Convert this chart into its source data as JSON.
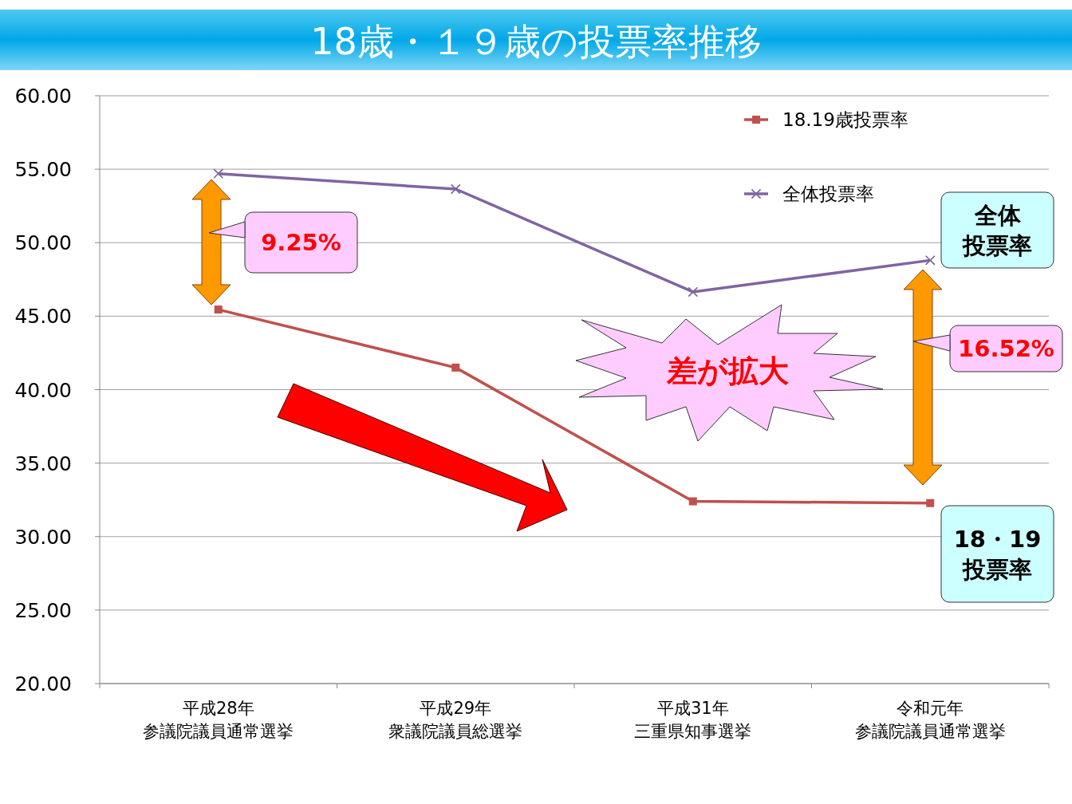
{
  "chart_data": {
    "type": "line",
    "title": "18歳・１９歳の投票率推移",
    "categories": [
      "平成28年参議院議員通常選挙",
      "平成29年衆議院議員総選挙",
      "平成31年三重県知事選挙",
      "令和元年参議院議員通常選挙"
    ],
    "series": [
      {
        "name": "18.19歳投票率",
        "color": "#c0504d",
        "marker": "square",
        "values": [
          45.45,
          41.5,
          32.4,
          32.28
        ]
      },
      {
        "name": "全体投票率",
        "color": "#8064a2",
        "marker": "cross",
        "values": [
          54.7,
          53.65,
          46.65,
          48.8
        ]
      }
    ],
    "ylim": [
      20,
      60
    ],
    "yticks": [
      {
        "value": 20,
        "label": "20.00"
      },
      {
        "value": 25,
        "label": "25.00"
      },
      {
        "value": 30,
        "label": "30.00"
      },
      {
        "value": 35,
        "label": "35.00"
      },
      {
        "value": 40,
        "label": "40.00"
      },
      {
        "value": 45,
        "label": "45.00"
      },
      {
        "value": 50,
        "label": "50.00"
      },
      {
        "value": 55,
        "label": "55.00"
      },
      {
        "value": 60,
        "label": "60.00"
      }
    ],
    "grid": "y",
    "legend": "top right",
    "line_style": "solid",
    "annotations": [
      "9.25%",
      "16.52%",
      "差が拡大",
      "全体投票率",
      "18・19投票率"
    ]
  }
}
